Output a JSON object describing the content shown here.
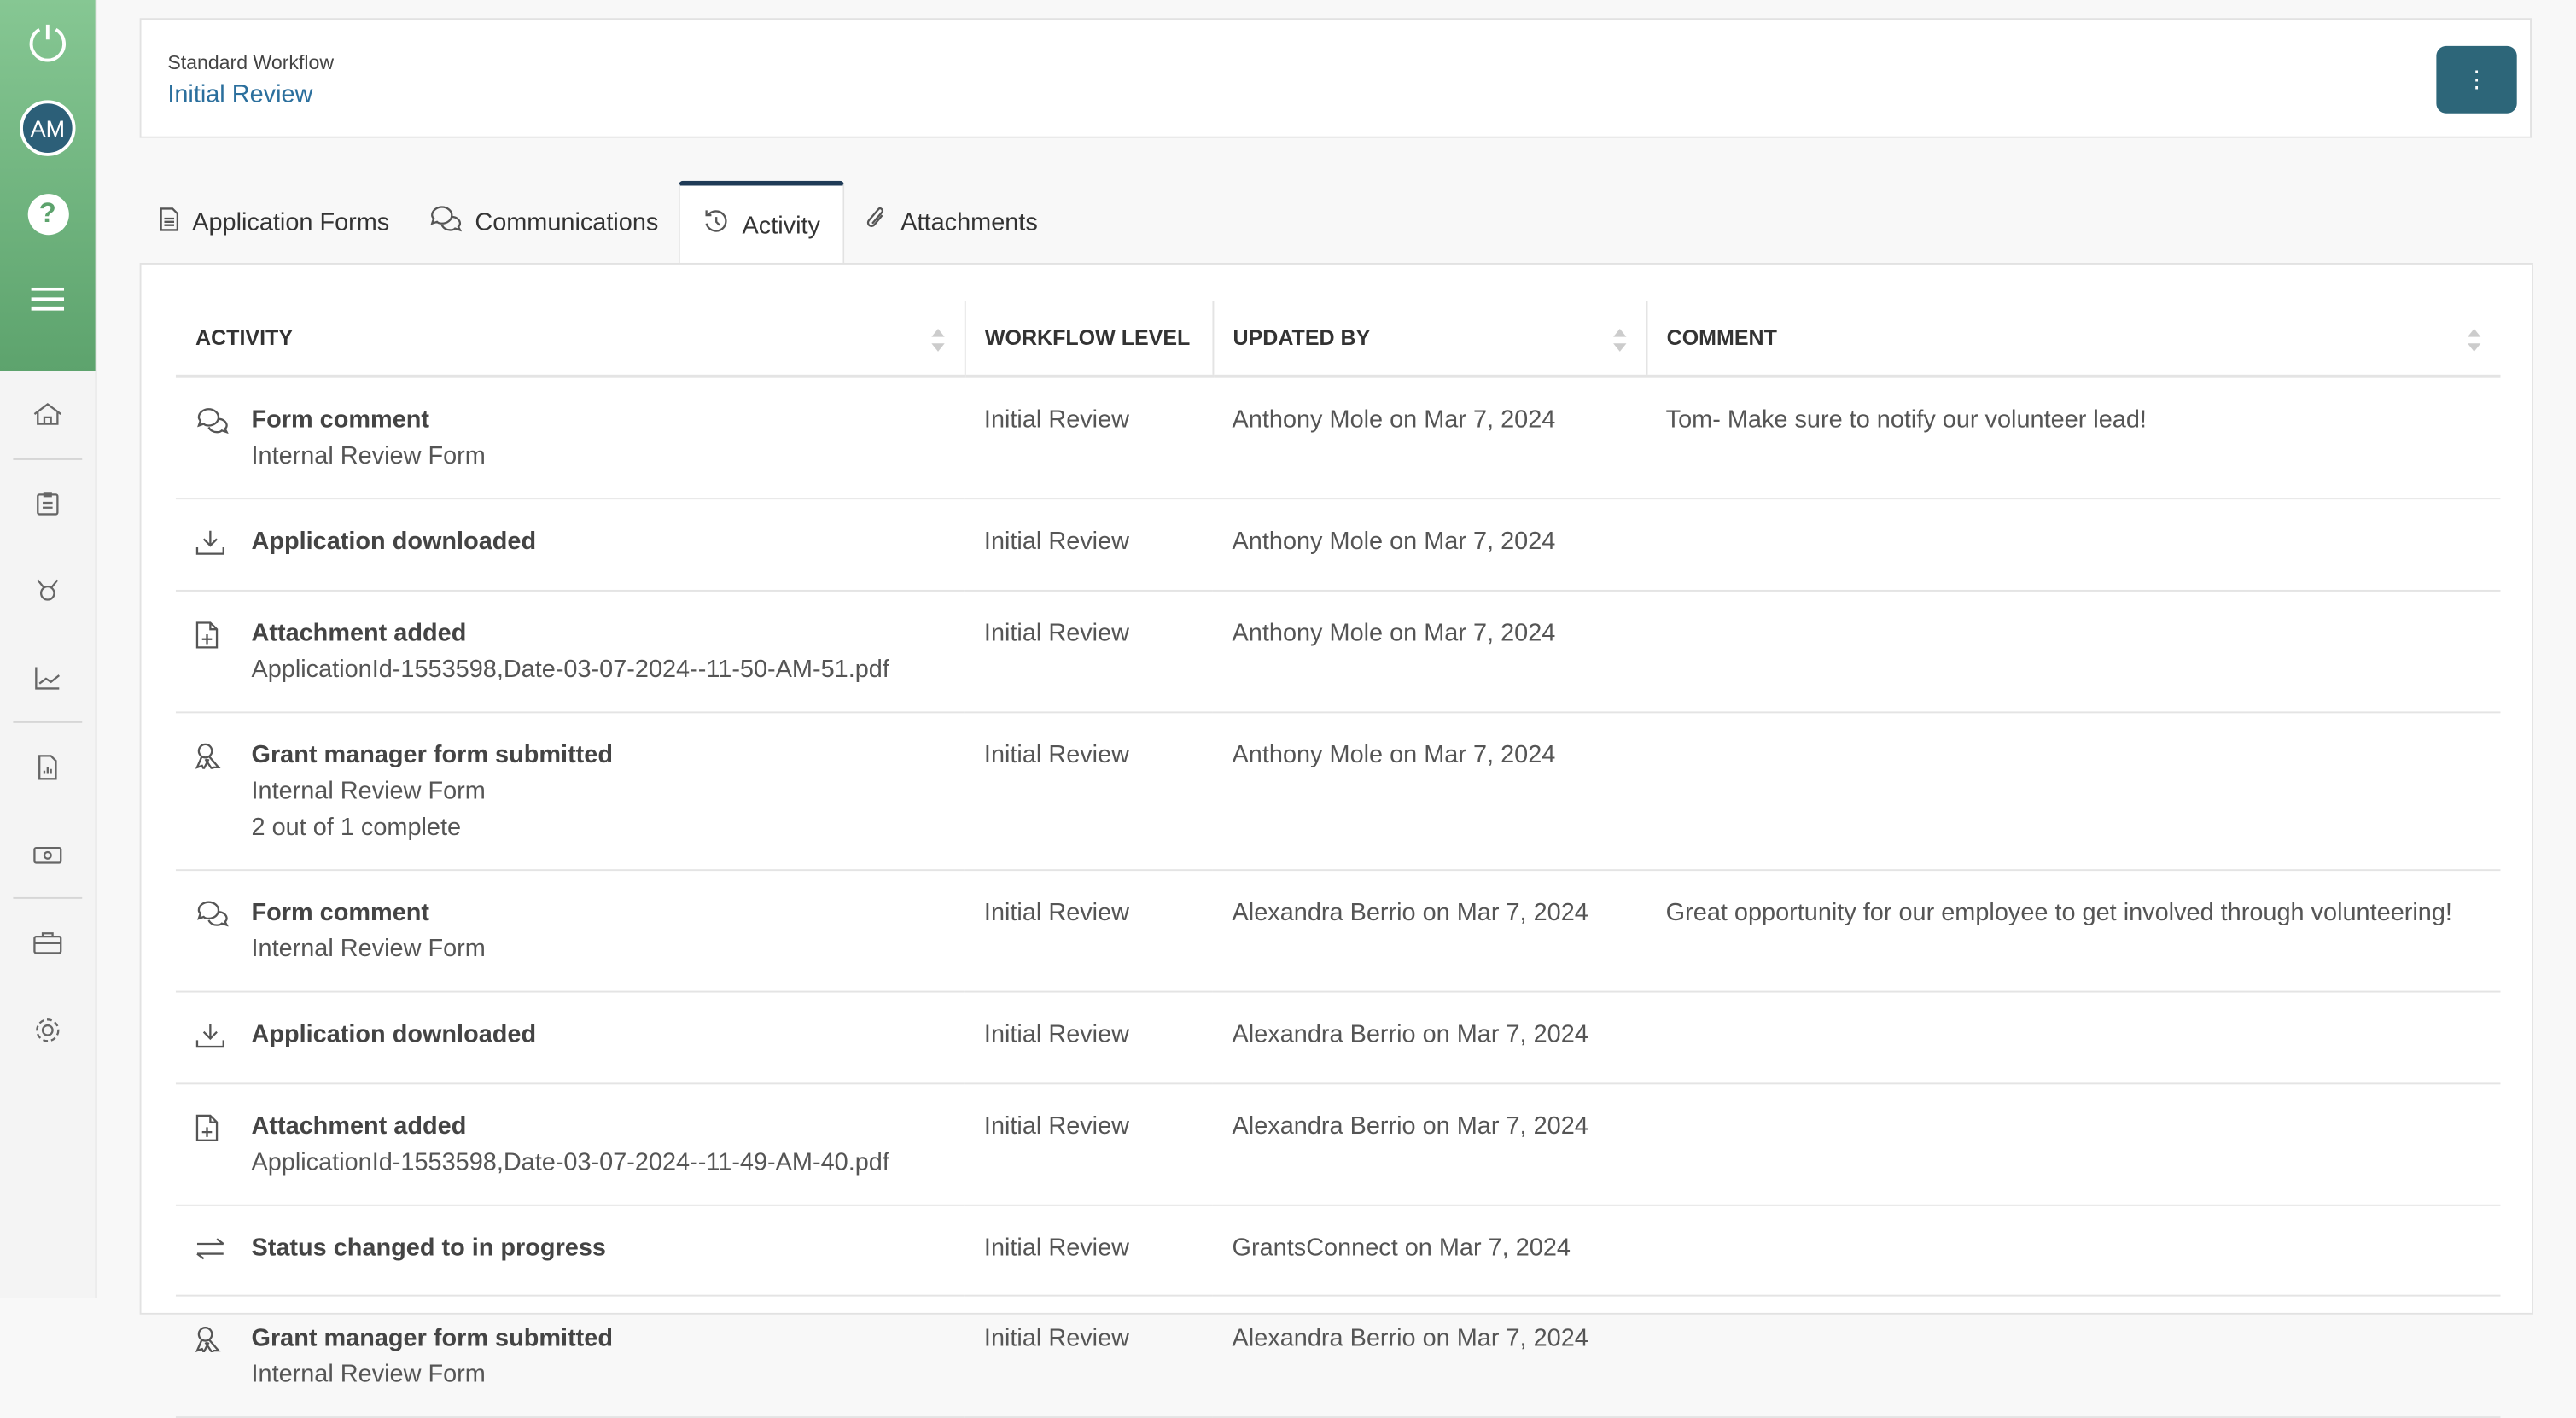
{
  "sidebar": {
    "avatar_initials": "AM",
    "help_label": "?",
    "nav_icons": [
      "home-icon",
      "clipboard-icon",
      "award-icon",
      "chart-icon",
      "report-icon",
      "money-icon",
      "briefcase-icon",
      "gear-icon"
    ]
  },
  "header": {
    "workflow": "Standard Workflow",
    "level": "Initial Review",
    "menu_label": "⋮"
  },
  "tabs": [
    {
      "label": "Application Forms",
      "icon": "file-icon"
    },
    {
      "label": "Communications",
      "icon": "chat-icon"
    },
    {
      "label": "Activity",
      "icon": "history-icon",
      "active": true
    },
    {
      "label": "Attachments",
      "icon": "paperclip-icon"
    }
  ],
  "table": {
    "columns": [
      "ACTIVITY",
      "WORKFLOW LEVEL",
      "UPDATED BY",
      "COMMENT"
    ],
    "rows": [
      {
        "icon": "chat",
        "title": "Form comment",
        "details": [
          "Internal Review Form"
        ],
        "level": "Initial Review",
        "updated_by": "Anthony Mole on Mar 7, 2024",
        "comment": "Tom- Make sure to notify our volunteer lead!"
      },
      {
        "icon": "download",
        "title": "Application downloaded",
        "details": [],
        "level": "Initial Review",
        "updated_by": "Anthony Mole on Mar 7, 2024",
        "comment": ""
      },
      {
        "icon": "file-plus",
        "title": "Attachment added",
        "details": [
          "ApplicationId-1553598,Date-03-07-2024--11-50-AM-51.pdf"
        ],
        "level": "Initial Review",
        "updated_by": "Anthony Mole on Mar 7, 2024",
        "comment": ""
      },
      {
        "icon": "ribbon",
        "title": "Grant manager form submitted",
        "details": [
          "Internal Review Form",
          "2 out of 1 complete"
        ],
        "level": "Initial Review",
        "updated_by": "Anthony Mole on Mar 7, 2024",
        "comment": ""
      },
      {
        "icon": "chat",
        "title": "Form comment",
        "details": [
          "Internal Review Form"
        ],
        "level": "Initial Review",
        "updated_by": "Alexandra Berrio on Mar 7, 2024",
        "comment": "Great opportunity for our employee to get involved through volunteering!"
      },
      {
        "icon": "download",
        "title": "Application downloaded",
        "details": [],
        "level": "Initial Review",
        "updated_by": "Alexandra Berrio on Mar 7, 2024",
        "comment": ""
      },
      {
        "icon": "file-plus",
        "title": "Attachment added",
        "details": [
          "ApplicationId-1553598,Date-03-07-2024--11-49-AM-40.pdf"
        ],
        "level": "Initial Review",
        "updated_by": "Alexandra Berrio on Mar 7, 2024",
        "comment": ""
      },
      {
        "icon": "swap",
        "title": "Status changed to in progress",
        "details": [],
        "level": "Initial Review",
        "updated_by": "GrantsConnect on Mar 7, 2024",
        "comment": ""
      },
      {
        "icon": "ribbon",
        "title": "Grant manager form submitted",
        "details": [
          "Internal Review Form"
        ],
        "level": "Initial Review",
        "updated_by": "Alexandra Berrio on Mar 7, 2024",
        "comment": ""
      }
    ]
  },
  "colors": {
    "sidebar_green": "#6fb57f",
    "avatar": "#2c5f78",
    "link_blue": "#2b6f9d",
    "menu_button": "#2d6679",
    "active_tab": "#1f3b57"
  }
}
